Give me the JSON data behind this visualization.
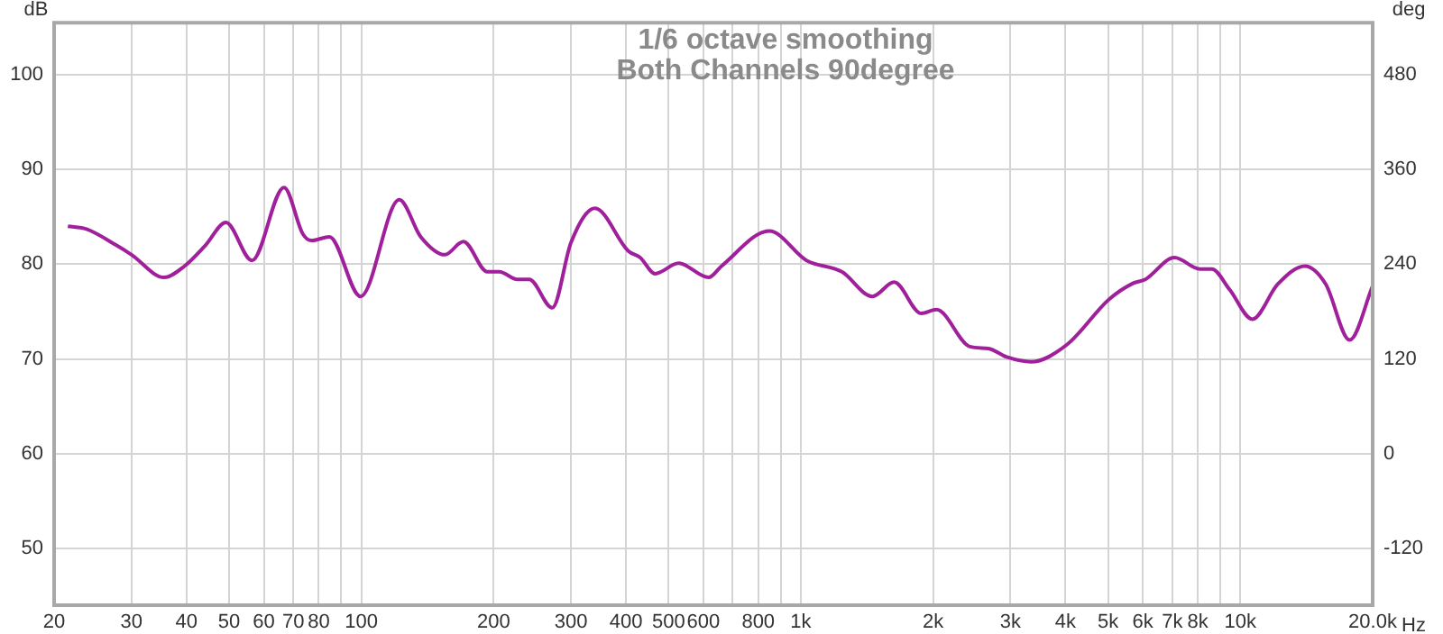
{
  "chart_data": {
    "type": "line",
    "title": "1/6 octave smoothing",
    "subtitle": "Both Channels 90degree",
    "xlabel": "Hz",
    "ylabel": "dB",
    "y2label": "deg",
    "log": "x",
    "grid": true,
    "legend": false,
    "marker": "none",
    "line_style": "solid",
    "xlim": [
      20,
      20000
    ],
    "xticks": [
      20,
      30,
      40,
      50,
      60,
      70,
      80,
      {
        "value": 90,
        "label": null
      },
      100,
      200,
      300,
      400,
      500,
      600,
      {
        "value": 700,
        "label": null
      },
      800,
      {
        "value": 900,
        "label": null
      },
      {
        "value": 1000,
        "label": "1k"
      },
      {
        "value": 2000,
        "label": "2k"
      },
      {
        "value": 3000,
        "label": "3k"
      },
      {
        "value": 4000,
        "label": "4k"
      },
      {
        "value": 5000,
        "label": "5k"
      },
      {
        "value": 6000,
        "label": "6k"
      },
      {
        "value": 7000,
        "label": "7k"
      },
      {
        "value": 8000,
        "label": "8k"
      },
      {
        "value": 9000,
        "label": null
      },
      {
        "value": 10000,
        "label": "10k"
      },
      {
        "value": 20000,
        "label": "20.0k"
      }
    ],
    "ylim": [
      44,
      105.5
    ],
    "yticks": [
      50,
      60,
      70,
      80,
      90,
      100
    ],
    "y2lim": [
      -192,
      546
    ],
    "y2ticks": [
      -120,
      0,
      120,
      240,
      360,
      480
    ],
    "x": [
      21.5,
      23.7,
      27.7,
      30,
      35.6,
      39.6,
      44.2,
      49.2,
      56.4,
      66.7,
      73.6,
      77,
      84.6,
      99.6,
      122,
      136.5,
      155,
      170.7,
      193.6,
      206,
      226.5,
      241,
      272,
      300,
      340,
      405,
      431,
      466,
      527,
      617,
      660,
      848,
      1030,
      1240,
      1455,
      1630,
      1880,
      2035,
      2425,
      2670,
      2940,
      3340,
      4030,
      5030,
      5710,
      6080,
      7080,
      8090,
      8610,
      9460,
      10650,
      12170,
      14020,
      15640,
      17730,
      20000
    ],
    "series": [
      {
        "color": "#a0209c",
        "values": [
          84.0,
          83.7,
          82.0,
          81.0,
          78.6,
          79.8,
          82.0,
          84.4,
          80.4,
          88.1,
          83.2,
          82.5,
          82.9,
          76.6,
          86.8,
          82.9,
          81.0,
          82.4,
          79.2,
          79.2,
          78.4,
          78.4,
          75.4,
          82.3,
          85.9,
          81.4,
          80.7,
          79.0,
          80.1,
          78.6,
          79.8,
          83.5,
          80.4,
          79.2,
          76.6,
          78.1,
          74.8,
          75.2,
          71.3,
          71.1,
          70.2,
          69.7,
          71.5,
          76.3,
          78.0,
          78.4,
          80.7,
          79.5,
          79.5,
          77.3,
          74.2,
          77.9,
          79.8,
          77.9,
          72.0,
          77.7
        ]
      }
    ]
  }
}
